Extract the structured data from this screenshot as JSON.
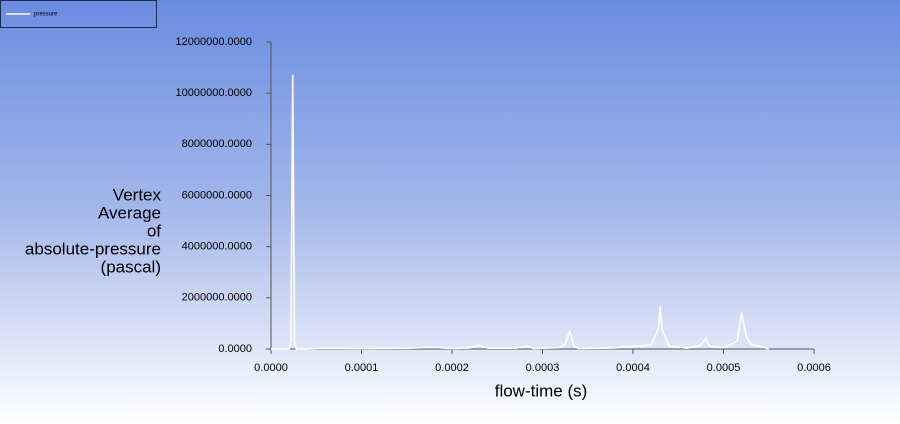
{
  "chart_data": {
    "type": "line",
    "ylabel": [
      "Vertex",
      "Average",
      "of",
      "absolute-pressure",
      "(pascal)"
    ],
    "xlabel": "flow-time (s)",
    "x": [
      0,
      2e-05,
      2.2e-05,
      2.4e-05,
      2.6e-05,
      2.8e-05,
      6e-05,
      0.0001,
      0.00015,
      0.00018,
      0.0002,
      0.00022,
      0.00023,
      0.00024,
      0.00027,
      0.000283,
      0.00029,
      0.00032,
      0.000325,
      0.00033,
      0.000335,
      0.00034,
      0.00038,
      0.00042,
      0.000428,
      0.00043,
      0.000432,
      0.00044,
      0.00046,
      0.000475,
      0.00048,
      0.000485,
      0.0005,
      0.000515,
      0.00052,
      0.000525,
      0.00053,
      0.00055
    ],
    "series": [
      {
        "name": "pressure",
        "color": "#ffffff",
        "values": [
          0,
          0,
          300000,
          10700000,
          300000,
          0,
          30000,
          20000,
          30000,
          60000,
          20000,
          40000,
          150000,
          30000,
          30000,
          100000,
          20000,
          50000,
          200000,
          700000,
          100000,
          20000,
          40000,
          150000,
          800000,
          1650000,
          800000,
          100000,
          30000,
          150000,
          400000,
          100000,
          50000,
          300000,
          1400000,
          500000,
          200000,
          0
        ]
      }
    ],
    "xlim": [
      0,
      0.0006
    ],
    "xticks": [
      {
        "value": 0,
        "label": "0.0000"
      },
      {
        "value": 0.0001,
        "label": "0.0001"
      },
      {
        "value": 0.0002,
        "label": "0.0002"
      },
      {
        "value": 0.0003,
        "label": "0.0003"
      },
      {
        "value": 0.0004,
        "label": "0.0004"
      },
      {
        "value": 0.0005,
        "label": "0.0005"
      },
      {
        "value": 0.0006,
        "label": "0.0006"
      }
    ],
    "ylim": [
      0,
      12000000
    ],
    "yticks": [
      {
        "value": 0,
        "label": "0.0000"
      },
      {
        "value": 2000000,
        "label": "2000000.0000"
      },
      {
        "value": 4000000,
        "label": "4000000.0000"
      },
      {
        "value": 6000000,
        "label": "6000000.0000"
      },
      {
        "value": 8000000,
        "label": "8000000.0000"
      },
      {
        "value": 10000000,
        "label": "10000000.0000"
      },
      {
        "value": 12000000,
        "label": "12000000.0000"
      }
    ]
  }
}
